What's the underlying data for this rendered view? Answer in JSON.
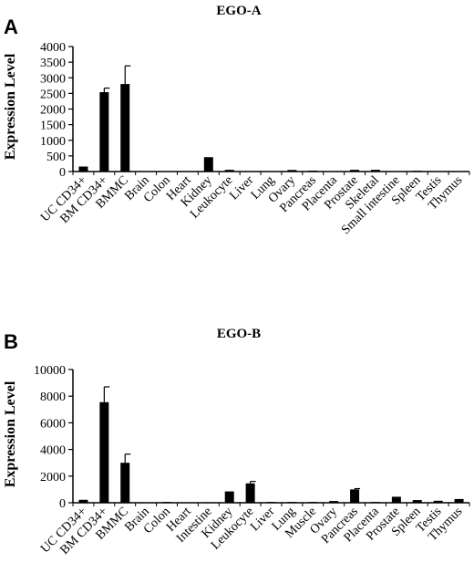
{
  "chart_data": [
    {
      "type": "bar",
      "panel_label": "A",
      "title": "EGO-A",
      "xlabel": "",
      "ylabel": "Expression Level",
      "ylim": [
        0,
        4000
      ],
      "yticks": [
        0,
        500,
        1000,
        1500,
        2000,
        2500,
        3000,
        3500,
        4000
      ],
      "grid": false,
      "legend": "none",
      "categories": [
        "UC CD34+",
        "BM CD34+",
        "BMMC",
        "Brain",
        "Colon",
        "Heart",
        "Kidney",
        "Leukocyte",
        "Liver",
        "Lung",
        "Ovary",
        "Pancreas",
        "Placenta",
        "Prostate",
        "Skeletal",
        "Small intestine",
        "Spleen",
        "Testis",
        "Thymus"
      ],
      "values": [
        160,
        2540,
        2800,
        0,
        0,
        0,
        460,
        55,
        0,
        0,
        50,
        30,
        0,
        55,
        55,
        0,
        25,
        0,
        0
      ],
      "errors": [
        0,
        130,
        580,
        0,
        0,
        0,
        0,
        0,
        0,
        0,
        0,
        0,
        0,
        0,
        0,
        0,
        0,
        0,
        0
      ]
    },
    {
      "type": "bar",
      "panel_label": "B",
      "title": "EGO-B",
      "xlabel": "",
      "ylabel": "Expression Level",
      "ylim": [
        0,
        10000
      ],
      "yticks": [
        0,
        2000,
        4000,
        6000,
        8000,
        10000
      ],
      "grid": false,
      "legend": "none",
      "categories": [
        "UC CD34+",
        "BM CD34+",
        "BMMC",
        "Brain",
        "Colon",
        "Heart",
        "Intestine",
        "Kidney",
        "Leukocyte",
        "Liver",
        "Lung",
        "Muscle",
        "Ovary",
        "Pancreas",
        "Placenta",
        "Prostate",
        "Spleen",
        "Testis",
        "Thymus"
      ],
      "values": [
        220,
        7550,
        3000,
        0,
        60,
        0,
        40,
        850,
        1450,
        60,
        60,
        60,
        130,
        1000,
        60,
        450,
        200,
        150,
        280
      ],
      "errors": [
        0,
        1150,
        650,
        0,
        0,
        0,
        0,
        0,
        150,
        0,
        0,
        0,
        0,
        60,
        0,
        0,
        0,
        0,
        0
      ]
    }
  ],
  "colors": {
    "bar": "#000000",
    "axis": "#000000"
  }
}
